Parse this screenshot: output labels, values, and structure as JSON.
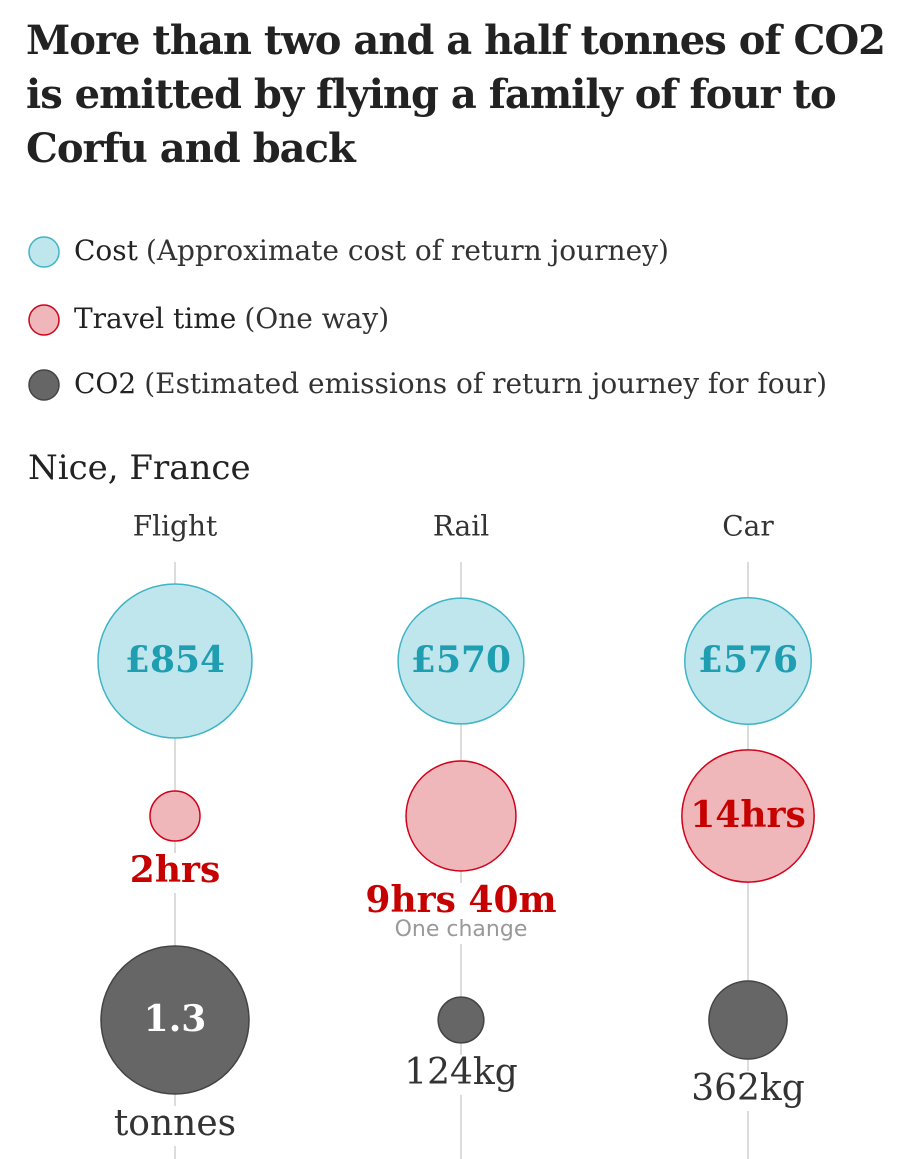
{
  "chart_data": {
    "type": "bubble",
    "title": "More than two and a half tonnes of CO2 is emitted by flying a family of four to Corfu and back",
    "subtitle": "Nice, France",
    "categories": [
      "Flight",
      "Rail",
      "Car"
    ],
    "series": [
      {
        "name": "Cost",
        "description": "(Approximate cost of return journey)",
        "color": "#bfe6ec",
        "stroke": "#3fb4c6",
        "text_color": "#1f9db1",
        "values": [
          854,
          570,
          576
        ],
        "value_labels": [
          [
            "£854"
          ],
          [
            "£570"
          ],
          [
            "£576"
          ]
        ]
      },
      {
        "name": "Travel time",
        "description": "(One way)",
        "color": "#f0b7ba",
        "stroke": "#d0021b",
        "text_color": "#c70000",
        "values": [
          120,
          580,
          840
        ],
        "value_labels": [
          [
            "2hrs"
          ],
          [
            "9hrs 40m"
          ],
          [
            "14hrs"
          ]
        ],
        "notes": [
          null,
          "One change",
          null
        ]
      },
      {
        "name": "CO2",
        "description": "(Estimated emissions of return journey for four)",
        "color": "#666666",
        "stroke": "#444444",
        "text_color": "#333333",
        "values": [
          1300,
          124,
          362
        ],
        "value_labels": [
          [
            "1.3",
            "tonnes"
          ],
          [
            "124kg"
          ],
          [
            "362kg"
          ]
        ]
      }
    ]
  }
}
